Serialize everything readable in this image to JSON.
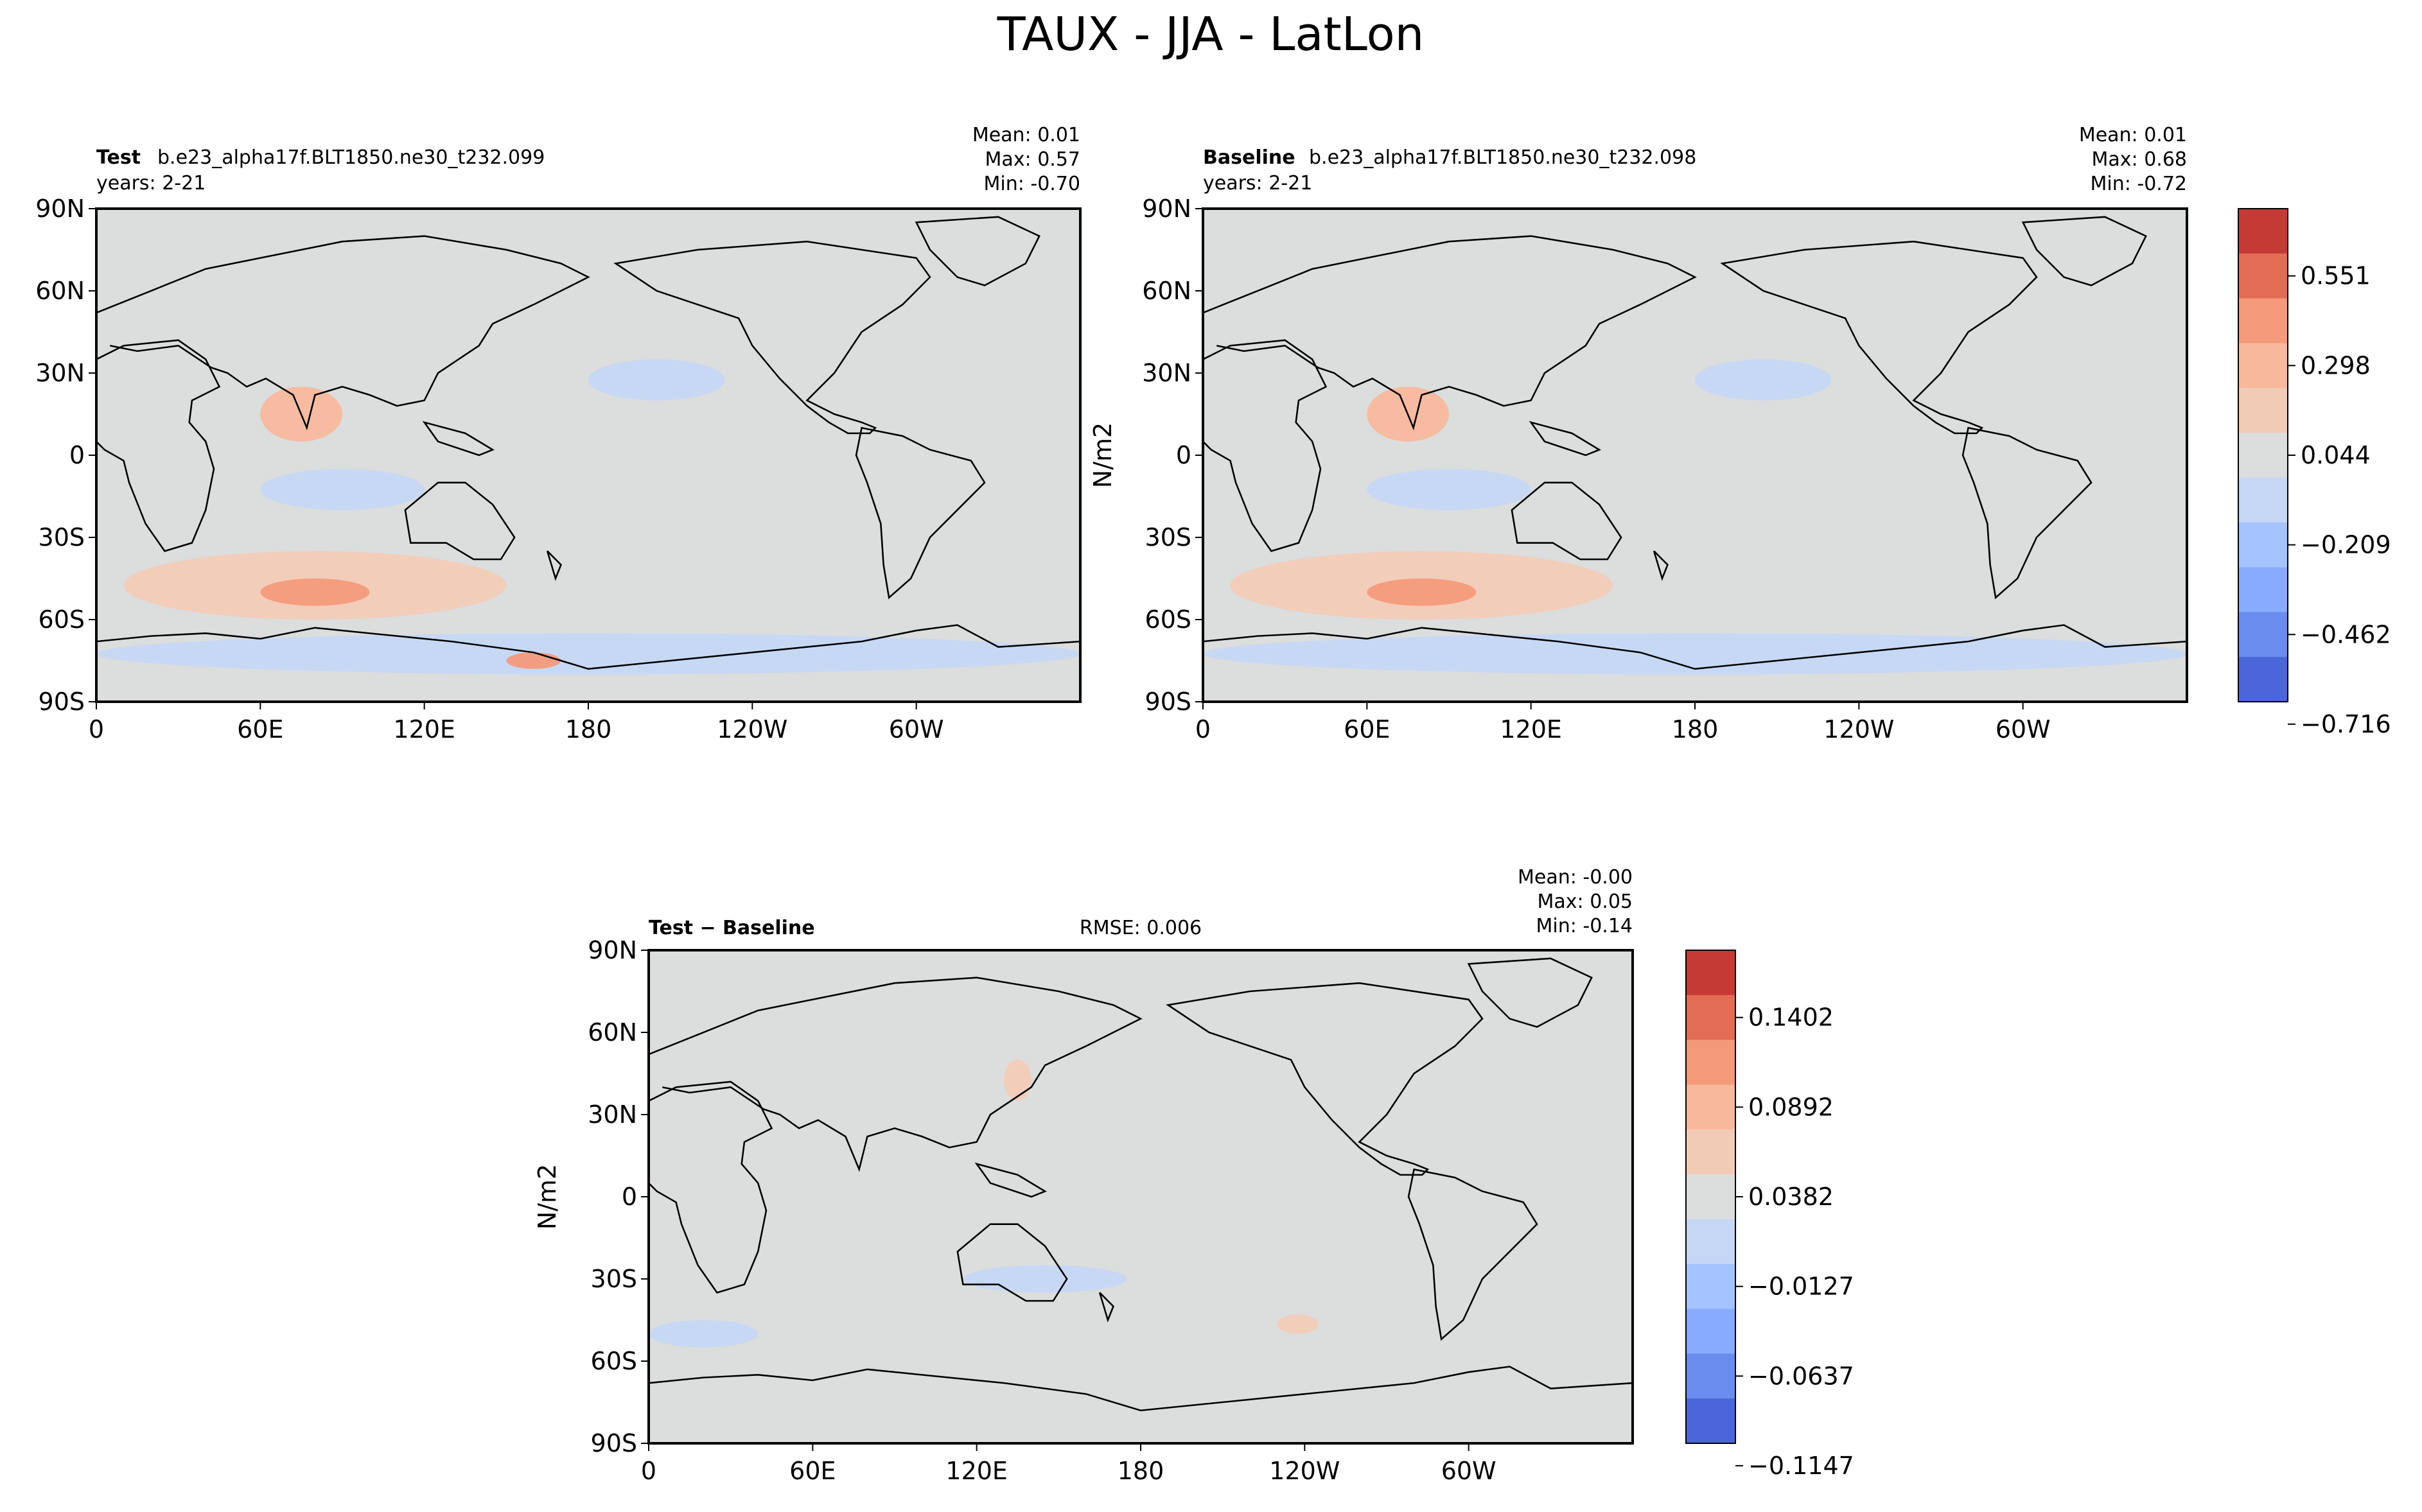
{
  "figure": {
    "title": "TAUX - JJA - LatLon"
  },
  "lat_ticks": [
    "90N",
    "60N",
    "30N",
    "0",
    "30S",
    "60S",
    "90S"
  ],
  "lon_ticks": [
    "0",
    "60E",
    "120E",
    "180",
    "120W",
    "60W"
  ],
  "colors": {
    "neutral": "#dcdddd",
    "pos": [
      "#f2cbb7",
      "#f7b89c",
      "#f49a7b",
      "#e36c55",
      "#c63a36"
    ],
    "neg": [
      "#c5d7f4",
      "#a5c3fe",
      "#88abfd",
      "#6a8cef",
      "#4b66d8"
    ]
  },
  "panels": {
    "test": {
      "name_label": "Test",
      "case": "b.e23_alpha17f.BLT1850.ne30_t232.099",
      "years": "years: 2-21",
      "mean": "Mean:  0.01",
      "max": "Max:  0.57",
      "min": "Min: -0.70"
    },
    "baseline": {
      "name_label": "Baseline",
      "case": "b.e23_alpha17f.BLT1850.ne30_t232.098",
      "years": "years: 2-21",
      "mean": "Mean:  0.01",
      "max": "Max:  0.68",
      "min": "Min: -0.72",
      "units": "N/m2"
    },
    "diff": {
      "name_label": "Test − Baseline",
      "rmse": "RMSE: 0.006",
      "mean": "Mean: -0.00",
      "max": "Max:  0.05",
      "min": "Min: -0.14",
      "units": "N/m2"
    }
  },
  "colorbars": {
    "main": {
      "labels": [
        "0.551",
        "0.298",
        "0.044",
        "−0.209",
        "−0.462",
        "−0.716"
      ]
    },
    "diff": {
      "labels": [
        "0.1402",
        "0.0892",
        "0.0382",
        "−0.0127",
        "−0.0637",
        "−0.1147"
      ]
    }
  },
  "chart_data": [
    {
      "type": "heatmap",
      "title": "TAUX - JJA - LatLon",
      "panel": "Test",
      "field": "TAUX (JJA mean)",
      "x_ticks": [
        "0",
        "60E",
        "120E",
        "180",
        "120W",
        "60W"
      ],
      "y_ticks": [
        "90N",
        "60N",
        "30N",
        "0",
        "30S",
        "60S",
        "90S"
      ],
      "stats": {
        "mean": 0.01,
        "max": 0.57,
        "min": -0.7
      },
      "contour_levels": [
        -0.716,
        -0.589,
        -0.462,
        -0.336,
        -0.209,
        -0.082,
        0.044,
        0.171,
        0.298,
        0.424,
        0.551,
        0.678
      ],
      "regions": [
        {
          "lon": [
            10,
            150
          ],
          "lat": [
            -60,
            -35
          ],
          "value": 0.17
        },
        {
          "lon": [
            60,
            100
          ],
          "lat": [
            -55,
            -45
          ],
          "value": 0.3
        },
        {
          "lon": [
            60,
            90
          ],
          "lat": [
            5,
            25
          ],
          "value": 0.2
        },
        {
          "lon": [
            60,
            120
          ],
          "lat": [
            -20,
            -5
          ],
          "value": -0.12
        },
        {
          "lon": [
            180,
            230
          ],
          "lat": [
            20,
            35
          ],
          "value": -0.12
        },
        {
          "lon": [
            0,
            360
          ],
          "lat": [
            -80,
            -65
          ],
          "value": -0.15
        },
        {
          "lon": [
            150,
            170
          ],
          "lat": [
            -78,
            -72
          ],
          "value": 0.3
        }
      ]
    },
    {
      "type": "heatmap",
      "panel": "Baseline",
      "field": "TAUX (JJA mean)",
      "x_ticks": [
        "0",
        "60E",
        "120E",
        "180",
        "120W",
        "60W"
      ],
      "y_ticks": [
        "90N",
        "60N",
        "30N",
        "0",
        "30S",
        "60S",
        "90S"
      ],
      "stats": {
        "mean": 0.01,
        "max": 0.68,
        "min": -0.72
      },
      "contour_levels": [
        -0.716,
        -0.589,
        -0.462,
        -0.336,
        -0.209,
        -0.082,
        0.044,
        0.171,
        0.298,
        0.424,
        0.551,
        0.678
      ],
      "regions": [
        {
          "lon": [
            10,
            150
          ],
          "lat": [
            -60,
            -35
          ],
          "value": 0.17
        },
        {
          "lon": [
            60,
            100
          ],
          "lat": [
            -55,
            -45
          ],
          "value": 0.3
        },
        {
          "lon": [
            60,
            90
          ],
          "lat": [
            5,
            25
          ],
          "value": 0.25
        },
        {
          "lon": [
            60,
            120
          ],
          "lat": [
            -20,
            -5
          ],
          "value": -0.12
        },
        {
          "lon": [
            180,
            230
          ],
          "lat": [
            20,
            35
          ],
          "value": -0.12
        },
        {
          "lon": [
            0,
            360
          ],
          "lat": [
            -80,
            -65
          ],
          "value": -0.15
        }
      ]
    },
    {
      "type": "heatmap",
      "panel": "Test - Baseline",
      "field": "TAUX difference",
      "x_ticks": [
        "0",
        "60E",
        "120E",
        "180",
        "120W",
        "60W"
      ],
      "y_ticks": [
        "90N",
        "60N",
        "30N",
        "0",
        "30S",
        "60S",
        "90S"
      ],
      "stats": {
        "rmse": 0.006,
        "mean": -0.0,
        "max": 0.05,
        "min": -0.14
      },
      "contour_levels": [
        -0.14,
        -0.1147,
        -0.0892,
        -0.0637,
        -0.0382,
        -0.0127,
        0.0127,
        0.0382,
        0.0637,
        0.0892,
        0.1147,
        0.1402
      ],
      "regions": [
        {
          "lon": [
            115,
            175
          ],
          "lat": [
            -35,
            -25
          ],
          "value": -0.02
        },
        {
          "lon": [
            0,
            40
          ],
          "lat": [
            -55,
            -45
          ],
          "value": -0.02
        },
        {
          "lon": [
            130,
            140
          ],
          "lat": [
            35,
            50
          ],
          "value": 0.02
        },
        {
          "lon": [
            230,
            245
          ],
          "lat": [
            -50,
            -43
          ],
          "value": 0.02
        }
      ]
    }
  ]
}
